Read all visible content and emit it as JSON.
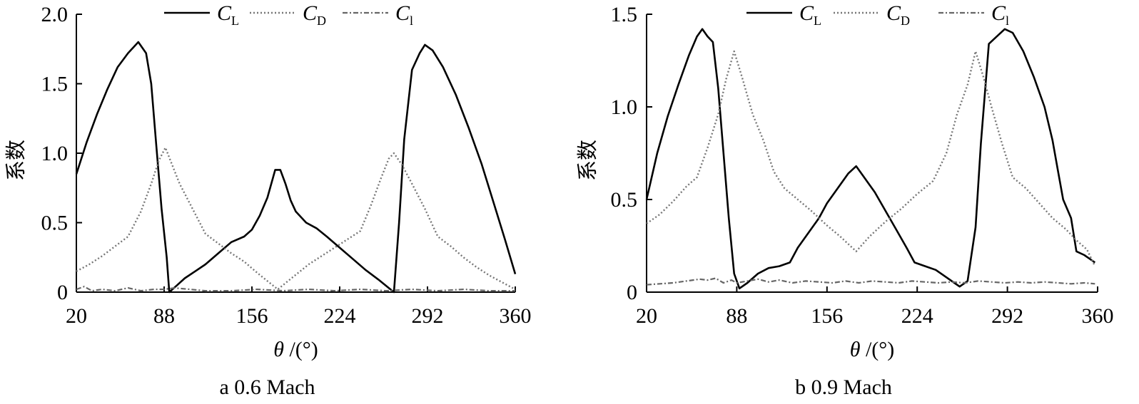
{
  "chart_data": [
    {
      "type": "line",
      "caption": "a 0.6 Mach",
      "xlabel_symbol": "θ",
      "xlabel_unit": "/(°)",
      "ylabel": "系数",
      "xlim": [
        20,
        360
      ],
      "ylim": [
        0,
        2.0
      ],
      "xticks": [
        20,
        88,
        156,
        224,
        292,
        360
      ],
      "xtick_labels": [
        "20",
        "88",
        "156",
        "224",
        "292",
        "360"
      ],
      "yticks": [
        0,
        0.5,
        1.0,
        1.5,
        2.0
      ],
      "ytick_labels": [
        "0",
        "0.5",
        "1.0",
        "1.5",
        "2.0"
      ],
      "grid": false,
      "legend_position": "top",
      "series": [
        {
          "name": "C_L",
          "legend_main": "C",
          "legend_sub": "L",
          "style": "solid",
          "color": "#000000",
          "points": [
            [
              20,
              0.85
            ],
            [
              28,
              1.08
            ],
            [
              36,
              1.28
            ],
            [
              44,
              1.46
            ],
            [
              52,
              1.62
            ],
            [
              60,
              1.72
            ],
            [
              68,
              1.8
            ],
            [
              74,
              1.72
            ],
            [
              78,
              1.5
            ],
            [
              82,
              1.05
            ],
            [
              86,
              0.6
            ],
            [
              90,
              0.25
            ],
            [
              92,
              0.0
            ],
            [
              98,
              0.05
            ],
            [
              104,
              0.1
            ],
            [
              112,
              0.15
            ],
            [
              120,
              0.2
            ],
            [
              130,
              0.28
            ],
            [
              140,
              0.36
            ],
            [
              150,
              0.4
            ],
            [
              156,
              0.45
            ],
            [
              162,
              0.55
            ],
            [
              168,
              0.68
            ],
            [
              174,
              0.88
            ],
            [
              178,
              0.88
            ],
            [
              182,
              0.78
            ],
            [
              186,
              0.66
            ],
            [
              190,
              0.58
            ],
            [
              198,
              0.5
            ],
            [
              206,
              0.46
            ],
            [
              214,
              0.4
            ],
            [
              224,
              0.32
            ],
            [
              234,
              0.24
            ],
            [
              244,
              0.16
            ],
            [
              254,
              0.09
            ],
            [
              262,
              0.03
            ],
            [
              266,
              0.0
            ],
            [
              270,
              0.5
            ],
            [
              274,
              1.1
            ],
            [
              280,
              1.6
            ],
            [
              286,
              1.72
            ],
            [
              290,
              1.78
            ],
            [
              296,
              1.74
            ],
            [
              304,
              1.62
            ],
            [
              314,
              1.42
            ],
            [
              324,
              1.18
            ],
            [
              334,
              0.92
            ],
            [
              344,
              0.62
            ],
            [
              352,
              0.38
            ],
            [
              360,
              0.13
            ]
          ]
        },
        {
          "name": "C_D",
          "legend_main": "C",
          "legend_sub": "D",
          "style": "dotted",
          "color": "#777777",
          "points": [
            [
              20,
              0.15
            ],
            [
              30,
              0.2
            ],
            [
              40,
              0.26
            ],
            [
              50,
              0.33
            ],
            [
              60,
              0.4
            ],
            [
              70,
              0.58
            ],
            [
              78,
              0.78
            ],
            [
              84,
              0.95
            ],
            [
              89,
              1.04
            ],
            [
              94,
              0.92
            ],
            [
              100,
              0.78
            ],
            [
              110,
              0.6
            ],
            [
              120,
              0.42
            ],
            [
              130,
              0.35
            ],
            [
              140,
              0.28
            ],
            [
              150,
              0.22
            ],
            [
              160,
              0.14
            ],
            [
              168,
              0.08
            ],
            [
              176,
              0.02
            ],
            [
              184,
              0.08
            ],
            [
              192,
              0.14
            ],
            [
              200,
              0.2
            ],
            [
              210,
              0.26
            ],
            [
              220,
              0.32
            ],
            [
              230,
              0.38
            ],
            [
              240,
              0.44
            ],
            [
              248,
              0.62
            ],
            [
              256,
              0.82
            ],
            [
              262,
              0.96
            ],
            [
              266,
              1.0
            ],
            [
              272,
              0.92
            ],
            [
              280,
              0.78
            ],
            [
              290,
              0.6
            ],
            [
              300,
              0.4
            ],
            [
              310,
              0.33
            ],
            [
              320,
              0.25
            ],
            [
              330,
              0.18
            ],
            [
              340,
              0.12
            ],
            [
              350,
              0.07
            ],
            [
              360,
              0.02
            ]
          ]
        },
        {
          "name": "C_l",
          "legend_main": "C",
          "legend_sub": "l",
          "style": "dashdot",
          "color": "#666666",
          "points": [
            [
              20,
              0.02
            ],
            [
              26,
              0.04
            ],
            [
              32,
              0.01
            ],
            [
              40,
              0.02
            ],
            [
              50,
              0.01
            ],
            [
              60,
              0.03
            ],
            [
              70,
              0.01
            ],
            [
              80,
              0.02
            ],
            [
              88,
              0.02
            ],
            [
              96,
              0.03
            ],
            [
              108,
              0.02
            ],
            [
              120,
              0.01
            ],
            [
              140,
              0.01
            ],
            [
              160,
              0.02
            ],
            [
              180,
              0.01
            ],
            [
              200,
              0.02
            ],
            [
              220,
              0.01
            ],
            [
              240,
              0.02
            ],
            [
              260,
              0.01
            ],
            [
              280,
              0.02
            ],
            [
              300,
              0.01
            ],
            [
              320,
              0.02
            ],
            [
              340,
              0.01
            ],
            [
              360,
              0.01
            ]
          ]
        }
      ]
    },
    {
      "type": "line",
      "caption": "b 0.9 Mach",
      "xlabel_symbol": "θ",
      "xlabel_unit": "/(°)",
      "ylabel": "系数",
      "xlim": [
        20,
        360
      ],
      "ylim": [
        0,
        1.5
      ],
      "xticks": [
        20,
        88,
        156,
        224,
        292,
        360
      ],
      "xtick_labels": [
        "20",
        "88",
        "156",
        "224",
        "292",
        "360"
      ],
      "yticks": [
        0,
        0.5,
        1.0,
        1.5
      ],
      "ytick_labels": [
        "0",
        "0.5",
        "1.0",
        "1.5"
      ],
      "grid": false,
      "legend_position": "top",
      "series": [
        {
          "name": "C_L",
          "legend_main": "C",
          "legend_sub": "L",
          "style": "solid",
          "color": "#000000",
          "points": [
            [
              20,
              0.5
            ],
            [
              28,
              0.75
            ],
            [
              36,
              0.95
            ],
            [
              44,
              1.12
            ],
            [
              52,
              1.28
            ],
            [
              58,
              1.38
            ],
            [
              62,
              1.42
            ],
            [
              66,
              1.38
            ],
            [
              70,
              1.35
            ],
            [
              74,
              1.1
            ],
            [
              78,
              0.75
            ],
            [
              82,
              0.4
            ],
            [
              86,
              0.1
            ],
            [
              90,
              0.02
            ],
            [
              96,
              0.05
            ],
            [
              104,
              0.1
            ],
            [
              112,
              0.13
            ],
            [
              120,
              0.14
            ],
            [
              128,
              0.16
            ],
            [
              134,
              0.24
            ],
            [
              142,
              0.32
            ],
            [
              150,
              0.4
            ],
            [
              156,
              0.48
            ],
            [
              164,
              0.56
            ],
            [
              172,
              0.64
            ],
            [
              178,
              0.68
            ],
            [
              184,
              0.62
            ],
            [
              192,
              0.54
            ],
            [
              200,
              0.44
            ],
            [
              208,
              0.34
            ],
            [
              216,
              0.24
            ],
            [
              222,
              0.16
            ],
            [
              230,
              0.14
            ],
            [
              238,
              0.12
            ],
            [
              246,
              0.08
            ],
            [
              252,
              0.05
            ],
            [
              256,
              0.03
            ],
            [
              262,
              0.06
            ],
            [
              268,
              0.35
            ],
            [
              272,
              0.8
            ],
            [
              278,
              1.34
            ],
            [
              284,
              1.38
            ],
            [
              290,
              1.42
            ],
            [
              296,
              1.4
            ],
            [
              304,
              1.3
            ],
            [
              312,
              1.16
            ],
            [
              320,
              1.0
            ],
            [
              326,
              0.82
            ],
            [
              330,
              0.66
            ],
            [
              334,
              0.5
            ],
            [
              340,
              0.4
            ],
            [
              344,
              0.22
            ],
            [
              350,
              0.2
            ],
            [
              358,
              0.16
            ]
          ]
        },
        {
          "name": "C_D",
          "legend_main": "C",
          "legend_sub": "D",
          "style": "dotted",
          "color": "#777777",
          "points": [
            [
              20,
              0.37
            ],
            [
              30,
              0.42
            ],
            [
              40,
              0.49
            ],
            [
              50,
              0.57
            ],
            [
              58,
              0.62
            ],
            [
              66,
              0.78
            ],
            [
              74,
              0.96
            ],
            [
              80,
              1.15
            ],
            [
              86,
              1.3
            ],
            [
              92,
              1.16
            ],
            [
              100,
              0.96
            ],
            [
              108,
              0.82
            ],
            [
              116,
              0.65
            ],
            [
              124,
              0.56
            ],
            [
              134,
              0.5
            ],
            [
              144,
              0.44
            ],
            [
              156,
              0.36
            ],
            [
              166,
              0.3
            ],
            [
              178,
              0.22
            ],
            [
              188,
              0.3
            ],
            [
              200,
              0.38
            ],
            [
              212,
              0.45
            ],
            [
              224,
              0.53
            ],
            [
              236,
              0.6
            ],
            [
              246,
              0.75
            ],
            [
              254,
              0.96
            ],
            [
              262,
              1.12
            ],
            [
              268,
              1.3
            ],
            [
              274,
              1.16
            ],
            [
              280,
              1.0
            ],
            [
              288,
              0.8
            ],
            [
              296,
              0.62
            ],
            [
              306,
              0.56
            ],
            [
              316,
              0.48
            ],
            [
              326,
              0.4
            ],
            [
              336,
              0.34
            ],
            [
              344,
              0.28
            ],
            [
              352,
              0.23
            ],
            [
              358,
              0.14
            ]
          ]
        },
        {
          "name": "C_l",
          "legend_main": "C",
          "legend_sub": "l",
          "style": "dashdot",
          "color": "#666666",
          "points": [
            [
              20,
              0.04
            ],
            [
              30,
              0.045
            ],
            [
              40,
              0.05
            ],
            [
              50,
              0.06
            ],
            [
              60,
              0.07
            ],
            [
              66,
              0.065
            ],
            [
              72,
              0.075
            ],
            [
              78,
              0.05
            ],
            [
              84,
              0.065
            ],
            [
              88,
              0.05
            ],
            [
              96,
              0.06
            ],
            [
              104,
              0.07
            ],
            [
              112,
              0.055
            ],
            [
              120,
              0.065
            ],
            [
              130,
              0.05
            ],
            [
              140,
              0.06
            ],
            [
              150,
              0.055
            ],
            [
              160,
              0.05
            ],
            [
              170,
              0.06
            ],
            [
              180,
              0.05
            ],
            [
              190,
              0.06
            ],
            [
              200,
              0.055
            ],
            [
              210,
              0.05
            ],
            [
              220,
              0.06
            ],
            [
              230,
              0.055
            ],
            [
              240,
              0.05
            ],
            [
              250,
              0.055
            ],
            [
              260,
              0.05
            ],
            [
              270,
              0.06
            ],
            [
              280,
              0.055
            ],
            [
              290,
              0.05
            ],
            [
              300,
              0.055
            ],
            [
              310,
              0.05
            ],
            [
              320,
              0.055
            ],
            [
              330,
              0.05
            ],
            [
              340,
              0.045
            ],
            [
              350,
              0.05
            ],
            [
              358,
              0.045
            ]
          ]
        }
      ]
    }
  ]
}
